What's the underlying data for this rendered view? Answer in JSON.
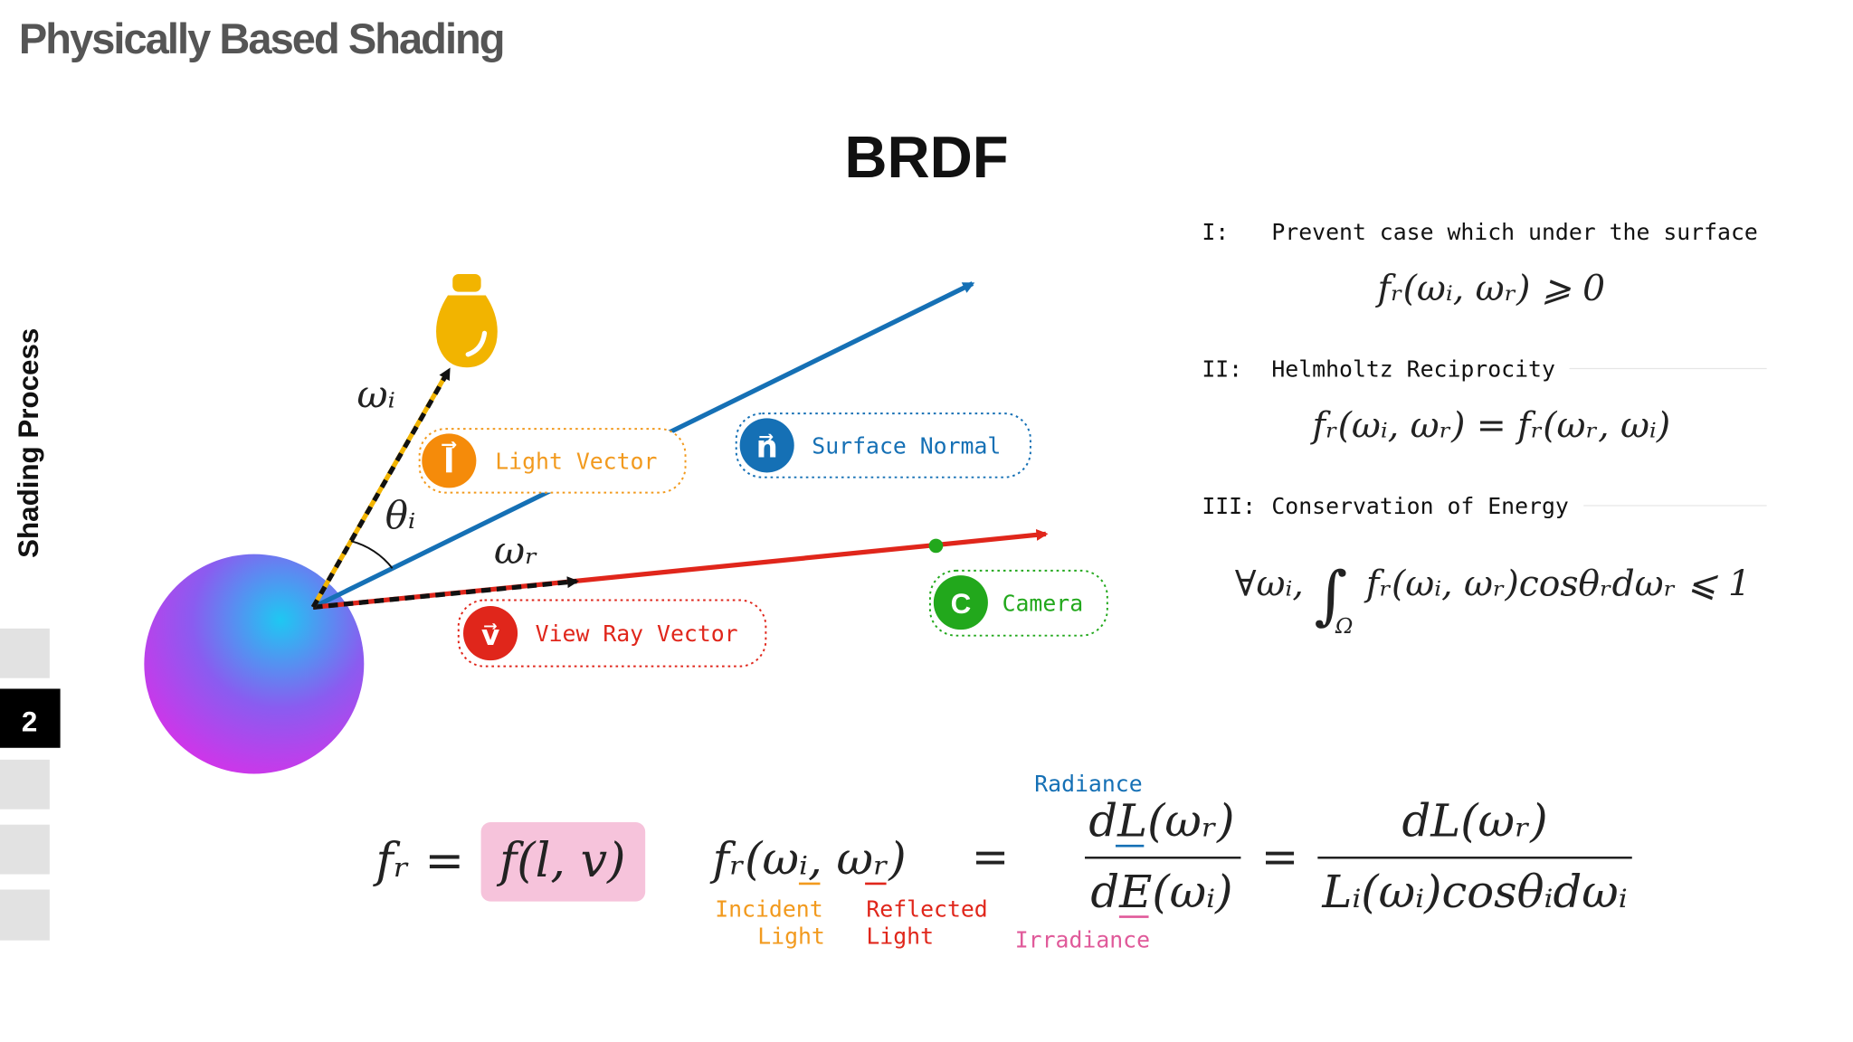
{
  "header": {
    "title": "Physically Based Shading"
  },
  "sidebar": {
    "section": "Shading Process",
    "page": "2"
  },
  "slide": {
    "title": "BRDF"
  },
  "diagram": {
    "omega_i": "ωᵢ",
    "theta_i": "θᵢ",
    "omega_r": "ωᵣ",
    "labels": [
      {
        "icon": "l⃗",
        "text": "Light Vector"
      },
      {
        "icon": "n⃗",
        "text": "Surface Normal"
      },
      {
        "icon": "v⃗",
        "text": "View Ray Vector"
      },
      {
        "icon": "C",
        "text": "Camera"
      }
    ]
  },
  "properties": [
    {
      "number": "I:",
      "name": "Prevent case which under the surface",
      "formula": "fᵣ(ωᵢ, ωᵣ) ⩾ 0"
    },
    {
      "number": "II:",
      "name": "Helmholtz Reciprocity",
      "formula": "fᵣ(ωᵢ, ωᵣ) = fᵣ(ωᵣ, ωᵢ)"
    },
    {
      "number": "III:",
      "name": "Conservation of Energy",
      "prefix": "∀ωᵢ,",
      "integral": "∫",
      "domain": "Ω",
      "formula": "fᵣ(ωᵢ, ωᵣ)cosθᵣdωᵣ ⩽ 1"
    }
  ],
  "equation": {
    "lhs": "fᵣ =",
    "highlight": "f(l, v)",
    "brdf": "fᵣ(ωᵢ, ωᵣ)",
    "equals_1": "=",
    "numerator_1": "dL(ωᵣ)",
    "denominator_1": "dE(ωᵢ)",
    "equals_2": "=",
    "numerator_2": "dL(ωᵣ)",
    "denominator_2": "Lᵢ(ωᵢ)cosθᵢdωᵢ",
    "radiance": "Radiance",
    "irradiance": "Irradiance",
    "incident": [
      "Incident",
      "Light"
    ],
    "reflected": [
      "Reflected",
      "Light"
    ]
  }
}
